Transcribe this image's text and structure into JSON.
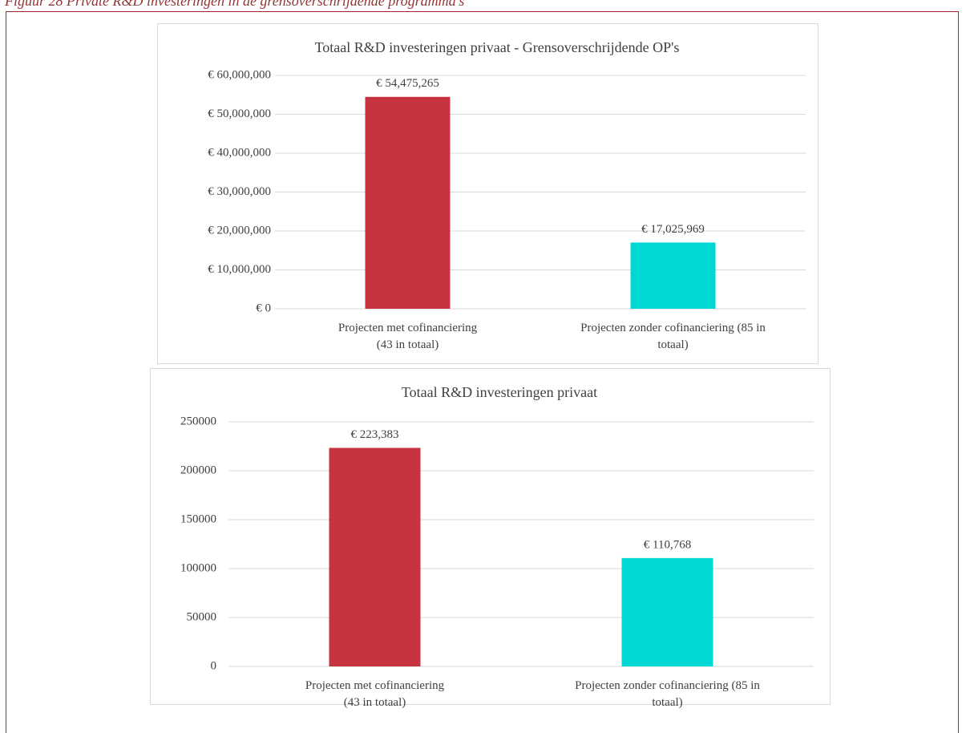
{
  "caption": "Figuur 28 Private R&D investeringen in de grensoverschrijdende programma's",
  "chart_data": [
    {
      "type": "bar",
      "title": "Totaal R&D investeringen privaat - Grensoverschrijdende OP's",
      "categories": [
        "Projecten met cofinanciering\n(43 in totaal)",
        "Projecten zonder cofinanciering (85 in\ntotaal)"
      ],
      "values": [
        54475265,
        17025969
      ],
      "value_labels": [
        "€ 54,475,265",
        "€ 17,025,969"
      ],
      "colors": [
        "#c5343f",
        "#00d8d3"
      ],
      "ylim": [
        0,
        60000000
      ],
      "yticks": [
        {
          "value": 0,
          "label": "€ 0"
        },
        {
          "value": 10000000,
          "label": "€ 10,000,000"
        },
        {
          "value": 20000000,
          "label": "€ 20,000,000"
        },
        {
          "value": 30000000,
          "label": "€ 30,000,000"
        },
        {
          "value": 40000000,
          "label": "€ 40,000,000"
        },
        {
          "value": 50000000,
          "label": "€ 50,000,000"
        },
        {
          "value": 60000000,
          "label": "€ 60,000,000"
        }
      ],
      "grid": true
    },
    {
      "type": "bar",
      "title": "Totaal R&D investeringen privaat",
      "categories": [
        "Projecten met cofinanciering\n(43 in totaal)",
        "Projecten zonder cofinanciering (85 in\ntotaal)"
      ],
      "values": [
        223383,
        110768
      ],
      "value_labels": [
        "€ 223,383",
        "€ 110,768"
      ],
      "colors": [
        "#c5343f",
        "#00d8d3"
      ],
      "ylim": [
        0,
        250000
      ],
      "yticks": [
        0,
        50000,
        100000,
        150000,
        200000,
        250000
      ],
      "grid": true
    }
  ]
}
